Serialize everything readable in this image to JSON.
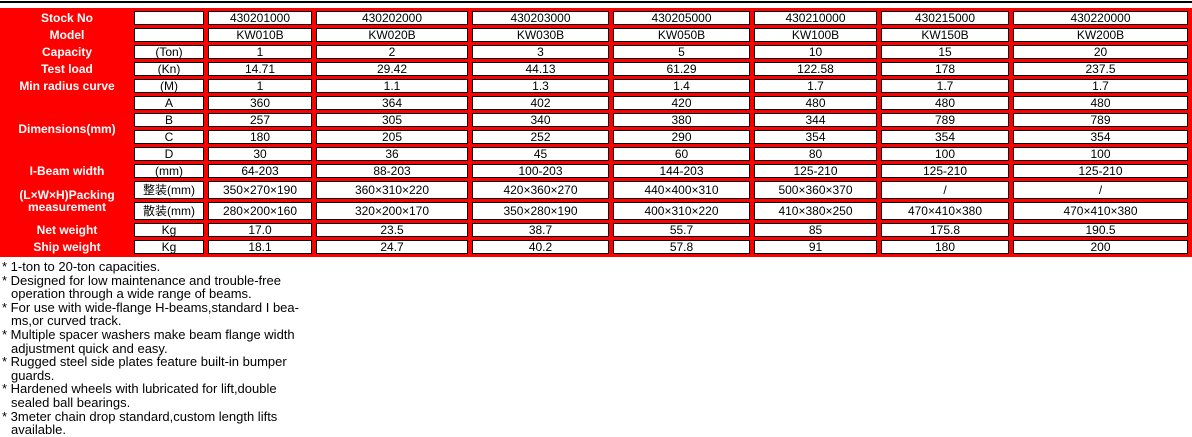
{
  "colors": {
    "table_red": "#ff0000",
    "cell_border": "#000000",
    "label_text": "#ffffff",
    "body_text": "#000000"
  },
  "table": {
    "rows": [
      {
        "label": "Stock No",
        "rowspan": 1,
        "unit": "",
        "values": [
          "430201000",
          "430202000",
          "430203000",
          "430205000",
          "430210000",
          "430215000",
          "430220000"
        ]
      },
      {
        "label": "Model",
        "rowspan": 1,
        "unit": "",
        "values": [
          "KW010B",
          "KW020B",
          "KW030B",
          "KW050B",
          "KW100B",
          "KW150B",
          "KW200B"
        ]
      },
      {
        "label": "Capacity",
        "rowspan": 1,
        "unit": "(Ton)",
        "values": [
          "1",
          "2",
          "3",
          "5",
          "10",
          "15",
          "20"
        ]
      },
      {
        "label": "Test load",
        "rowspan": 1,
        "unit": "(Kn)",
        "values": [
          "14.71",
          "29.42",
          "44.13",
          "61.29",
          "122.58",
          "178",
          "237.5"
        ]
      },
      {
        "label": "Min radius curve",
        "rowspan": 1,
        "unit": "(M)",
        "values": [
          "1",
          "1.1",
          "1.3",
          "1.4",
          "1.7",
          "1.7",
          "1.7"
        ]
      },
      {
        "label": "Dimensions(mm)",
        "rowspan": 4,
        "unit": "A",
        "values": [
          "360",
          "364",
          "402",
          "420",
          "480",
          "480",
          "480"
        ]
      },
      {
        "unit": "B",
        "values": [
          "257",
          "305",
          "340",
          "380",
          "344",
          "789",
          "789"
        ]
      },
      {
        "unit": "C",
        "values": [
          "180",
          "205",
          "252",
          "290",
          "354",
          "354",
          "354"
        ]
      },
      {
        "unit": "D",
        "values": [
          "30",
          "36",
          "45",
          "60",
          "80",
          "100",
          "100"
        ]
      },
      {
        "label": "I-Beam width",
        "rowspan": 1,
        "unit": "(mm)",
        "values": [
          "64-203",
          "88-203",
          "100-203",
          "144-203",
          "125-210",
          "125-210",
          "125-210"
        ]
      },
      {
        "label": "(L×W×H)Packing measurement",
        "rowspan": 2,
        "unit": "整装(mm)",
        "values": [
          "350×270×190",
          "360×310×220",
          "420×360×270",
          "440×400×310",
          "500×360×370",
          "/",
          "/"
        ]
      },
      {
        "unit": "散装(mm)",
        "values": [
          "280×200×160",
          "320×200×170",
          "350×280×190",
          "400×310×220",
          "410×380×250",
          "470×410×380",
          "470×410×380"
        ]
      },
      {
        "label": "Net weight",
        "rowspan": 1,
        "unit": "Kg",
        "values": [
          "17.0",
          "23.5",
          "38.7",
          "55.7",
          "85",
          "175.8",
          "190.5"
        ]
      },
      {
        "label": "Ship weight",
        "rowspan": 1,
        "unit": "Kg",
        "values": [
          "18.1",
          "24.7",
          "40.2",
          "57.8",
          "91",
          "180",
          "200"
        ]
      }
    ]
  },
  "notes": {
    "lines": [
      {
        "text": "* 1-ton to 20-ton capacities.",
        "indent": false
      },
      {
        "text": "* Designed for low maintenance and trouble-free",
        "indent": false
      },
      {
        "text": "operation through a wide range of beams.",
        "indent": true
      },
      {
        "text": "* For use with wide-flange H-beams,standard I bea-",
        "indent": false
      },
      {
        "text": "ms,or curved track.",
        "indent": true
      },
      {
        "text": "* Multiple spacer washers make beam flange width",
        "indent": false
      },
      {
        "text": "adjustment quick and easy.",
        "indent": true
      },
      {
        "text": "* Rugged steel side plates feature built-in bumper",
        "indent": false
      },
      {
        "text": "guards.",
        "indent": true
      },
      {
        "text": "* Hardened wheels with lubricated for lift,double",
        "indent": false
      },
      {
        "text": "sealed ball bearings.",
        "indent": true
      },
      {
        "text": "* 3meter chain drop standard,custom length lifts",
        "indent": false
      },
      {
        "text": "available.",
        "indent": true
      }
    ]
  }
}
